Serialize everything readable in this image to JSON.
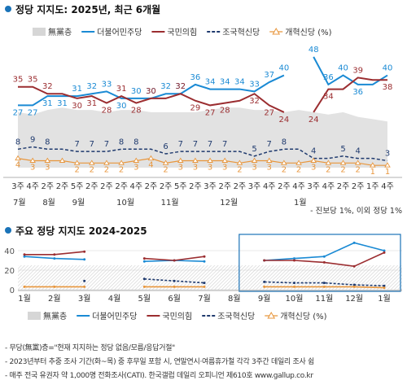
{
  "top": {
    "title": "정당 지지도: 2025년, 최근 6개월",
    "legend": [
      {
        "label": "無黨층",
        "style": "area",
        "color": "#d6d6d6"
      },
      {
        "label": "더불어민주당",
        "style": "line",
        "color": "#1a8ad4"
      },
      {
        "label": "국민의힘",
        "style": "line",
        "color": "#9b2d30"
      },
      {
        "label": "조국혁신당",
        "style": "dash",
        "color": "#1f3a6e"
      },
      {
        "label": "개혁신당 (%)",
        "style": "marker",
        "color": "#e8963c"
      }
    ],
    "footnote": "- 진보당 1%, 이외 정당 1%",
    "weeks": [
      "3주",
      "4주",
      "2주",
      "2주",
      "5주",
      "2주",
      "2주",
      "2주",
      "4주",
      "2주",
      "2주",
      "5주",
      "2주",
      "3주",
      "2주",
      "2주",
      "3주",
      "4주",
      "2주",
      "4주",
      "3주",
      "4주",
      "2주",
      "2주",
      "1주",
      "4주"
    ],
    "months": [
      {
        "label": "7월",
        "at": 0
      },
      {
        "label": "8월",
        "at": 2
      },
      {
        "label": "9월",
        "at": 4
      },
      {
        "label": "10월",
        "at": 7
      },
      {
        "label": "11월",
        "at": 10
      },
      {
        "label": "12월",
        "at": 14
      },
      {
        "label": "1월",
        "at": 19
      }
    ]
  },
  "bottom": {
    "title": "주요 정당 지지도 2024-2025",
    "yticks": [
      "40",
      "20",
      "0"
    ],
    "months": [
      "1월",
      "2월",
      "3월",
      "4월",
      "5월",
      "6월",
      "7월",
      "8월",
      "9월",
      "10월",
      "11월",
      "12월",
      "1월"
    ],
    "legend": [
      {
        "label": "無黨층",
        "style": "area",
        "color": "#d6d6d6"
      },
      {
        "label": "더불어민주당",
        "style": "line",
        "color": "#1a8ad4"
      },
      {
        "label": "국민의힘",
        "style": "line",
        "color": "#9b2d30"
      },
      {
        "label": "조국혁신당",
        "style": "dash",
        "color": "#1f3a6e"
      },
      {
        "label": "개혁신당 (%)",
        "style": "marker",
        "color": "#e8963c"
      }
    ]
  },
  "notes": [
    "- 무당(無黨)층=\"현재 지지하는 정당 없음/모름/응답거절\"",
    "- 2023년부터 추중 조사 기간(화~목) 중 후무일 포함 시, 연말연시·여름휴가철 각각 3주간 데일리 조사 쉼",
    "- 매주 전국 유권자 약 1,000명 전화조사(CATI). 한국갤럽 데일리 오피니언 제610호 www.gallup.co.kr"
  ],
  "chart_data": [
    {
      "type": "line",
      "title": "정당 지지도: 2025년, 최근 6개월",
      "x": [
        "7월 3주",
        "7월 4주",
        "8월 2주",
        "8월 2주",
        "8월 5주",
        "9월 2주",
        "9월 2주",
        "9월 2주",
        "9월 4주",
        "10월 2주",
        "10월 2주",
        "10월 5주",
        "11월 2주",
        "11월 3주",
        "11월 2주",
        "12월 2주",
        "12월 3주",
        "12월 4주",
        "12월 2주",
        "12월 4주",
        "1월 3주",
        "1월 4주",
        "1월 2주",
        "1월 2주",
        "1월 1주",
        "1월 4주"
      ],
      "ylim": [
        0,
        55
      ],
      "series": [
        {
          "name": "無黨층",
          "values": [
            null,
            null,
            null,
            null,
            null,
            null,
            null,
            null,
            null,
            null,
            null,
            null,
            null,
            null,
            null,
            null,
            null,
            null,
            null,
            null,
            null,
            null,
            null,
            null,
            null,
            null
          ]
        },
        {
          "name": "더불어민주당",
          "values": [
            27,
            27,
            31,
            31,
            31,
            32,
            33,
            30,
            30,
            30,
            32,
            32,
            36,
            34,
            34,
            34,
            33,
            37,
            40,
            null,
            48,
            36,
            40,
            36,
            36,
            40
          ],
          "labels": [
            27,
            27,
            31,
            31,
            31,
            32,
            33,
            30,
            30,
            30,
            32,
            32,
            36,
            34,
            34,
            34,
            33,
            37,
            40,
            null,
            48,
            36,
            40,
            36,
            null,
            40
          ]
        },
        {
          "name": "국민의힘",
          "values": [
            35,
            35,
            32,
            32,
            30,
            31,
            28,
            31,
            28,
            30,
            30,
            32,
            29,
            27,
            28,
            29,
            32,
            27,
            24,
            null,
            24,
            34,
            34,
            39,
            38,
            38
          ],
          "labels": [
            35,
            35,
            32,
            null,
            30,
            31,
            28,
            31,
            28,
            30,
            null,
            32,
            29,
            27,
            28,
            null,
            32,
            27,
            24,
            null,
            24,
            34,
            null,
            39,
            null,
            38
          ]
        },
        {
          "name": "조국혁신당",
          "values": [
            8,
            9,
            8,
            8,
            7,
            7,
            7,
            8,
            8,
            8,
            6,
            7,
            7,
            7,
            7,
            7,
            5,
            7,
            8,
            8,
            4,
            4,
            5,
            4,
            4,
            3
          ],
          "labels": [
            8,
            9,
            8,
            null,
            7,
            7,
            7,
            8,
            8,
            null,
            6,
            7,
            7,
            7,
            7,
            null,
            5,
            7,
            8,
            null,
            4,
            null,
            5,
            4,
            null,
            3
          ]
        },
        {
          "name": "개혁신당 (%)",
          "values": [
            4,
            3,
            3,
            3,
            2,
            2,
            2,
            2,
            3,
            4,
            2,
            3,
            3,
            3,
            3,
            2,
            3,
            3,
            2,
            2,
            3,
            2,
            2,
            2,
            1,
            1
          ],
          "labels": [
            4,
            3,
            3,
            null,
            2,
            2,
            2,
            2,
            3,
            4,
            2,
            3,
            3,
            3,
            3,
            2,
            3,
            3,
            2,
            2,
            3,
            2,
            2,
            2,
            1,
            1
          ]
        }
      ],
      "independents_area": [
        24,
        23,
        25,
        26,
        25,
        25,
        24,
        25,
        25,
        24,
        24,
        24,
        24,
        25,
        26,
        26,
        25,
        25,
        24,
        25,
        24,
        23,
        24,
        22,
        21,
        20
      ]
    },
    {
      "type": "line",
      "title": "주요 정당 지지도 2024-2025",
      "x": [
        "1월",
        "2월",
        "3월",
        "4월",
        "5월",
        "6월",
        "7월",
        "8월",
        "9월",
        "10월",
        "11월",
        "12월",
        "1월"
      ],
      "ylim": [
        0,
        50
      ],
      "yticks": [
        40,
        20,
        0
      ],
      "series": [
        {
          "name": "더불어민주당",
          "values": [
            34,
            32,
            31,
            null,
            29,
            30,
            29,
            null,
            30,
            32,
            34,
            48,
            40
          ]
        },
        {
          "name": "국민의힘",
          "values": [
            36,
            36,
            39,
            null,
            32,
            30,
            34,
            null,
            30,
            30,
            28,
            24,
            38
          ]
        },
        {
          "name": "조국혁신당",
          "values": [
            null,
            null,
            9,
            null,
            11,
            9,
            7,
            null,
            8,
            7,
            7,
            5,
            4
          ]
        },
        {
          "name": "개혁신당 (%)",
          "values": [
            3,
            3,
            3,
            null,
            3,
            3,
            3,
            null,
            3,
            3,
            3,
            3,
            2
          ]
        }
      ]
    }
  ]
}
